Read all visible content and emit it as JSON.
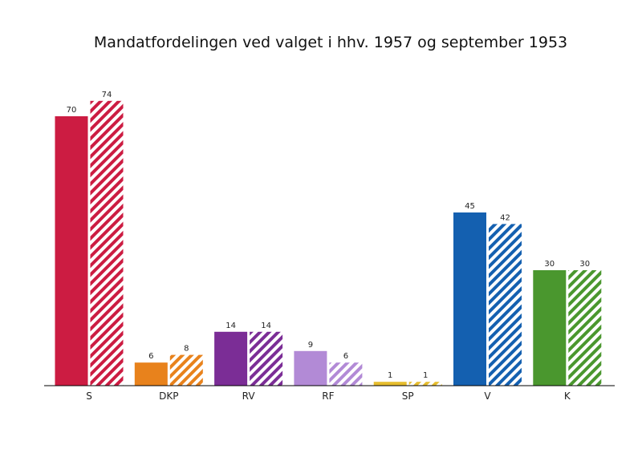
{
  "chart_data": {
    "type": "bar",
    "title": "Mandatfordelingen ved valget i hhv. 1957 og september 1953",
    "xlabel": "",
    "ylabel": "",
    "ylim": [
      0,
      78
    ],
    "grid": false,
    "legend": "none",
    "categories": [
      "S",
      "DKP",
      "RV",
      "RF",
      "SP",
      "V",
      "K"
    ],
    "colors": [
      "#cc1c42",
      "#e8821c",
      "#7b2d96",
      "#b28ad6",
      "#e6bd2e",
      "#1460b0",
      "#4a972e"
    ],
    "series": [
      {
        "style": "solid",
        "values": [
          70,
          6,
          14,
          9,
          1,
          45,
          30
        ]
      },
      {
        "style": "hatched",
        "values": [
          74,
          8,
          14,
          6,
          1,
          42,
          30
        ]
      }
    ]
  }
}
